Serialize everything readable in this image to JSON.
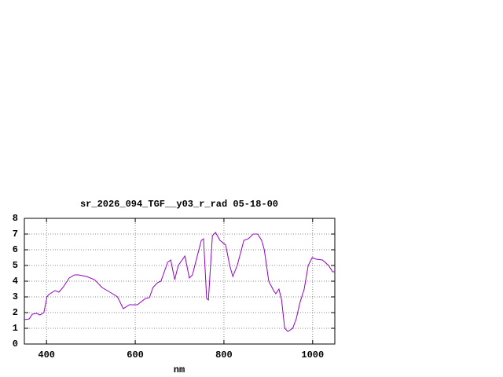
{
  "chart_data": {
    "type": "line",
    "title": "sr_2026_094_TGF__y03_r_rad 05-18-00",
    "x_label": "nm",
    "x": [
      350,
      361,
      368,
      378,
      385,
      394,
      401,
      405,
      419,
      428,
      437,
      451,
      463,
      472,
      490,
      508,
      525,
      543,
      560,
      573,
      587,
      605,
      623,
      632,
      640,
      650,
      658,
      673,
      680,
      689,
      697,
      712,
      722,
      729,
      738,
      749,
      754,
      761,
      765,
      774,
      781,
      791,
      804,
      813,
      820,
      830,
      845,
      855,
      866,
      876,
      885,
      891,
      901,
      912,
      917,
      924,
      930,
      937,
      944,
      955,
      963,
      971,
      981,
      990,
      999,
      1008,
      1022,
      1036,
      1045,
      1050
    ],
    "series": [
      {
        "color": "#9400c8",
        "values": [
          1.55,
          1.6,
          1.9,
          1.95,
          1.85,
          2.0,
          3.0,
          3.15,
          3.4,
          3.3,
          3.6,
          4.2,
          4.4,
          4.4,
          4.3,
          4.1,
          3.6,
          3.3,
          3.0,
          2.25,
          2.5,
          2.5,
          2.9,
          2.95,
          3.6,
          3.9,
          4.0,
          5.2,
          5.35,
          4.1,
          5.0,
          5.6,
          4.2,
          4.4,
          5.4,
          6.6,
          6.7,
          2.9,
          2.8,
          6.9,
          7.1,
          6.6,
          6.3,
          5.0,
          4.3,
          5.0,
          6.6,
          6.7,
          7.0,
          7.0,
          6.6,
          6.0,
          4.0,
          3.4,
          3.2,
          3.5,
          2.8,
          1.0,
          0.8,
          1.0,
          1.6,
          2.6,
          3.5,
          5.0,
          5.5,
          5.4,
          5.35,
          5.0,
          4.6,
          4.6
        ]
      }
    ],
    "xlim": [
      350,
      1050
    ],
    "ylim": [
      0,
      8
    ],
    "xticks": [
      400,
      600,
      800,
      1000
    ],
    "yticks": [
      0,
      1,
      2,
      3,
      4,
      5,
      6,
      7,
      8
    ],
    "grid": true
  }
}
